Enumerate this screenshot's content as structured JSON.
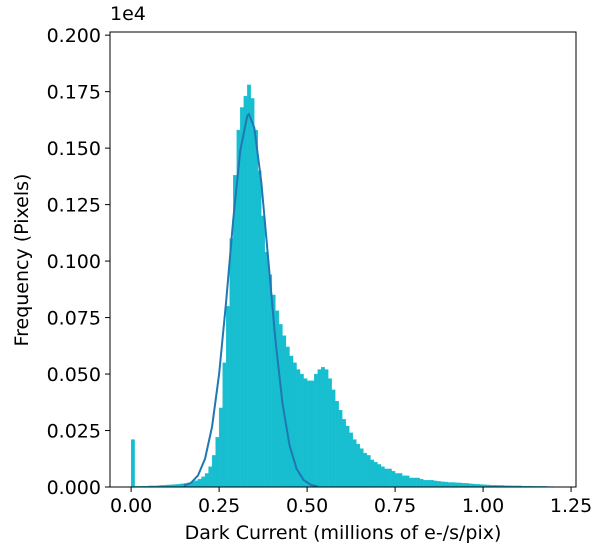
{
  "chart_data": {
    "type": "histogram",
    "x_label": "Dark Current (millions of e-/s/pix)",
    "y_label": "Frequency (Pixels)",
    "y_offset_label": "1e4",
    "color": "#17becf",
    "bins": [
      0,
      0.01,
      0.02,
      0.03,
      0.04,
      0.05,
      0.06,
      0.07,
      0.08,
      0.09,
      0.1,
      0.11,
      0.12,
      0.13,
      0.14,
      0.15,
      0.16,
      0.17,
      0.18,
      0.19,
      0.2,
      0.21,
      0.22,
      0.23,
      0.24,
      0.25,
      0.26,
      0.27,
      0.28,
      0.29,
      0.3,
      0.31,
      0.32,
      0.33,
      0.34,
      0.35,
      0.36,
      0.37,
      0.38,
      0.39,
      0.4,
      0.41,
      0.42,
      0.43,
      0.44,
      0.45,
      0.46,
      0.47,
      0.48,
      0.49,
      0.5,
      0.51,
      0.52,
      0.53,
      0.54,
      0.55,
      0.56,
      0.57,
      0.58,
      0.59,
      0.6,
      0.61,
      0.62,
      0.63,
      0.64,
      0.65,
      0.66,
      0.67,
      0.68,
      0.69,
      0.7,
      0.71,
      0.72,
      0.73,
      0.74,
      0.75,
      0.76,
      0.77,
      0.78,
      0.79,
      0.8,
      0.81,
      0.82,
      0.83,
      0.84,
      0.85,
      0.86,
      0.87,
      0.88,
      0.89,
      0.9,
      0.91,
      0.92,
      0.93,
      0.94,
      0.95,
      0.96,
      0.97,
      0.98,
      0.99,
      1.0,
      1.01,
      1.02,
      1.03,
      1.04,
      1.05,
      1.06,
      1.07,
      1.08,
      1.09,
      1.1,
      1.11,
      1.12,
      1.13,
      1.14,
      1.15,
      1.16,
      1.17,
      1.18,
      1.19,
      1.2
    ],
    "values": [
      0.021,
      0.0003,
      0.0003,
      0.0004,
      0.0004,
      0.0005,
      0.0005,
      0.0006,
      0.0007,
      0.0008,
      0.0009,
      0.001,
      0.0011,
      0.0012,
      0.0014,
      0.0016,
      0.0019,
      0.0023,
      0.0028,
      0.0035,
      0.0045,
      0.006,
      0.009,
      0.014,
      0.022,
      0.035,
      0.055,
      0.08,
      0.11,
      0.138,
      0.158,
      0.168,
      0.173,
      0.178,
      0.172,
      0.158,
      0.14,
      0.12,
      0.104,
      0.094,
      0.085,
      0.078,
      0.072,
      0.067,
      0.062,
      0.058,
      0.055,
      0.052,
      0.05,
      0.048,
      0.047,
      0.047,
      0.05,
      0.052,
      0.053,
      0.052,
      0.048,
      0.043,
      0.038,
      0.034,
      0.03,
      0.027,
      0.024,
      0.021,
      0.019,
      0.017,
      0.015,
      0.014,
      0.012,
      0.011,
      0.01,
      0.009,
      0.008,
      0.008,
      0.007,
      0.006,
      0.006,
      0.005,
      0.005,
      0.004,
      0.004,
      0.004,
      0.0035,
      0.003,
      0.003,
      0.003,
      0.0027,
      0.0025,
      0.0023,
      0.0022,
      0.002,
      0.002,
      0.0019,
      0.0018,
      0.0017,
      0.0016,
      0.0014,
      0.0013,
      0.0012,
      0.0011,
      0.001,
      0.0009,
      0.0008,
      0.0008,
      0.0007,
      0.0007,
      0.0006,
      0.0006,
      0.0005,
      0.0005,
      0.0005,
      0.0004,
      0.0004,
      0.0004,
      0.0003,
      0.0003,
      0.0003,
      0.0003,
      0.0002,
      0.0002
    ],
    "fit": {
      "color": "#1f77b4",
      "x": [
        0.15,
        0.17,
        0.19,
        0.21,
        0.23,
        0.25,
        0.27,
        0.29,
        0.31,
        0.33,
        0.335,
        0.35,
        0.37,
        0.39,
        0.41,
        0.43,
        0.45,
        0.47,
        0.49,
        0.51,
        0.53
      ],
      "values": [
        0.0006,
        0.0018,
        0.0051,
        0.0125,
        0.0267,
        0.05,
        0.0821,
        0.1181,
        0.1488,
        0.1643,
        0.165,
        0.159,
        0.1348,
        0.1001,
        0.0651,
        0.0371,
        0.0185,
        0.0081,
        0.0031,
        0.001,
        0.0002
      ]
    },
    "xlim": [
      -0.06,
      1.264
    ],
    "ylim": [
      0,
      0.2014
    ],
    "xticks": [
      {
        "value": 0,
        "label": "0.00"
      },
      {
        "value": 0.25,
        "label": "0.25"
      },
      {
        "value": 0.5,
        "label": "0.50"
      },
      {
        "value": 0.75,
        "label": "0.75"
      },
      {
        "value": 1,
        "label": "1.00"
      },
      {
        "value": 1.25,
        "label": "1.25"
      }
    ],
    "yticks": [
      {
        "value": 0,
        "label": "0.000"
      },
      {
        "value": 0.025,
        "label": "0.025"
      },
      {
        "value": 0.05,
        "label": "0.050"
      },
      {
        "value": 0.075,
        "label": "0.075"
      },
      {
        "value": 0.1,
        "label": "0.100"
      },
      {
        "value": 0.125,
        "label": "0.125"
      },
      {
        "value": 0.15,
        "label": "0.150"
      },
      {
        "value": 0.175,
        "label": "0.175"
      },
      {
        "value": 0.2,
        "label": "0.200"
      }
    ],
    "grid": false
  }
}
